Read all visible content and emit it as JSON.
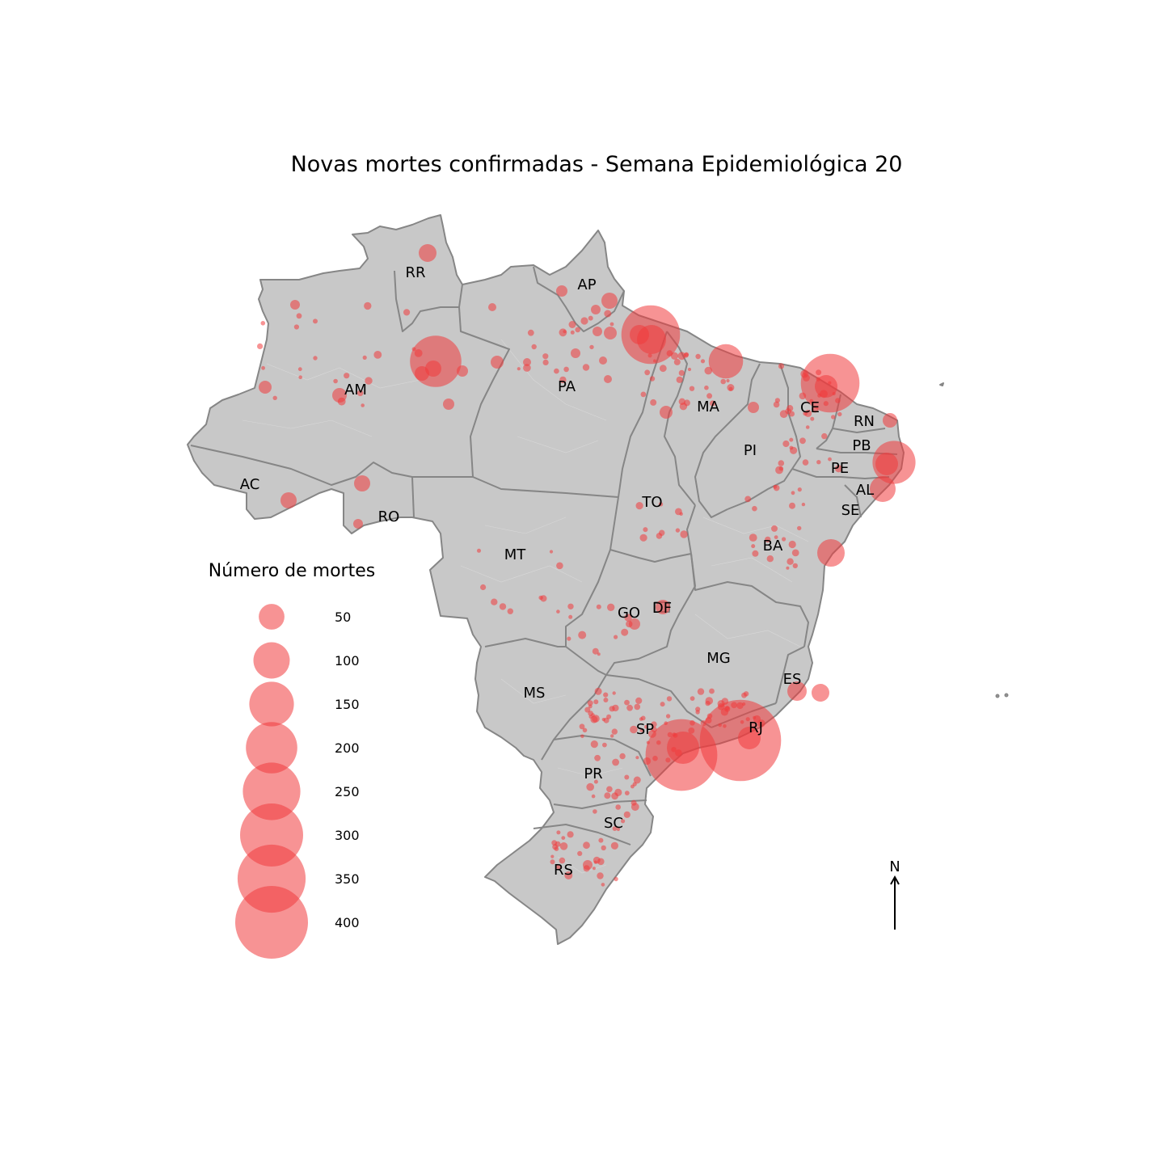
{
  "title": "Novas mortes confirmadas - Semana Epidemiológica 20",
  "legend": {
    "title": "Número de mortes",
    "entries": [
      {
        "label": "50",
        "value": 50
      },
      {
        "label": "100",
        "value": 100
      },
      {
        "label": "150",
        "value": 150
      },
      {
        "label": "200",
        "value": 200
      },
      {
        "label": "250",
        "value": 250
      },
      {
        "label": "300",
        "value": 300
      },
      {
        "label": "350",
        "value": 350
      },
      {
        "label": "400",
        "value": 400
      }
    ]
  },
  "north_arrow": {
    "label": "N"
  },
  "colors": {
    "bubble": "#f03a3c",
    "land": "#c8c8c8",
    "border": "#868686"
  },
  "states": [
    {
      "code": "RR",
      "label": "RR"
    },
    {
      "code": "AP",
      "label": "AP"
    },
    {
      "code": "AM",
      "label": "AM"
    },
    {
      "code": "PA",
      "label": "PA"
    },
    {
      "code": "MA",
      "label": "MA"
    },
    {
      "code": "CE",
      "label": "CE"
    },
    {
      "code": "RN",
      "label": "RN"
    },
    {
      "code": "PB",
      "label": "PB"
    },
    {
      "code": "PE",
      "label": "PE"
    },
    {
      "code": "PI",
      "label": "PI"
    },
    {
      "code": "AL",
      "label": "AL"
    },
    {
      "code": "SE",
      "label": "SE"
    },
    {
      "code": "AC",
      "label": "AC"
    },
    {
      "code": "RO",
      "label": "RO"
    },
    {
      "code": "TO",
      "label": "TO"
    },
    {
      "code": "BA",
      "label": "BA"
    },
    {
      "code": "MT",
      "label": "MT"
    },
    {
      "code": "GO",
      "label": "GO"
    },
    {
      "code": "DF",
      "label": "DF"
    },
    {
      "code": "MG",
      "label": "MG"
    },
    {
      "code": "ES",
      "label": "ES"
    },
    {
      "code": "MS",
      "label": "MS"
    },
    {
      "code": "SP",
      "label": "SP"
    },
    {
      "code": "RJ",
      "label": "RJ"
    },
    {
      "code": "PR",
      "label": "PR"
    },
    {
      "code": "SC",
      "label": "SC"
    },
    {
      "code": "RS",
      "label": "RS"
    }
  ],
  "major_outbreaks": [
    {
      "name": "sp-capital",
      "deaths": 390
    },
    {
      "name": "rj-capital",
      "deaths": 500
    },
    {
      "name": "belem",
      "deaths": 260
    },
    {
      "name": "fortaleza",
      "deaths": 260
    },
    {
      "name": "manaus",
      "deaths": 200
    },
    {
      "name": "recife",
      "deaths": 140
    },
    {
      "name": "sao-luis",
      "deaths": 90
    }
  ]
}
